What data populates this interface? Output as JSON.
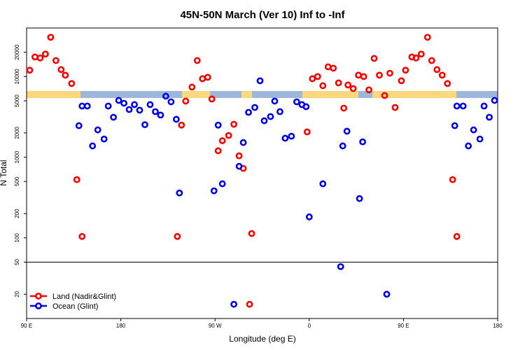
{
  "chart_data": {
    "type": "scatter",
    "title": "45N-50N March (Ver 10)   Inf to -Inf",
    "x_label": "Longitude (deg E)",
    "y_label": "N Total",
    "log_y": true,
    "xlim": [
      90,
      540
    ],
    "xticks": [
      {
        "value": 90,
        "label": "90 E"
      },
      180,
      {
        "value": 270,
        "label": "90 W"
      },
      {
        "value": 360,
        "label": "0"
      },
      {
        "value": 450,
        "label": "90 E"
      },
      {
        "value": 540,
        "label": "180"
      }
    ],
    "ylim": [
      10,
      40000
    ],
    "yticks": [
      20,
      50,
      100,
      200,
      500,
      1000,
      2000,
      5000,
      10000,
      20000
    ],
    "hline": 50,
    "legend": "bottom-left",
    "series": [
      {
        "name": "Land (Nadir&Glint)",
        "color": "#ff0000",
        "x": [
          93,
          98,
          103,
          108,
          113,
          118,
          123,
          127,
          133,
          138,
          143,
          234,
          238,
          242,
          248,
          253,
          258,
          263,
          267,
          273,
          277,
          283,
          288,
          293,
          297,
          305,
          303,
          358,
          363,
          368,
          373,
          378,
          383,
          388,
          393,
          397,
          402,
          407,
          412,
          417,
          422,
          427,
          432,
          437,
          442,
          448,
          452,
          458,
          462,
          467,
          473,
          477,
          482,
          487,
          492,
          497,
          501
        ],
        "values": [
          12000,
          17500,
          17000,
          19000,
          30700,
          15800,
          12200,
          10400,
          8200,
          527,
          104,
          104,
          2500,
          4960,
          7400,
          15800,
          9400,
          9800,
          5270,
          1200,
          1600,
          1860,
          2560,
          1040,
          726,
          113,
          15,
          2060,
          9400,
          10000,
          7700,
          13200,
          12700,
          8350,
          4060,
          7870,
          7100,
          10400,
          10000,
          6840,
          16800,
          10400,
          5820,
          11000,
          4140,
          8870,
          12000,
          17500,
          17000,
          19000,
          30700,
          15800,
          12200,
          10400,
          8200,
          527,
          104
        ]
      },
      {
        "name": "Ocean (Glint)",
        "color": "#0000ee",
        "x": [
          140,
          143,
          148,
          153,
          158,
          164,
          168,
          173,
          178,
          183,
          188,
          193,
          198,
          203,
          208,
          213,
          218,
          223,
          228,
          233,
          236,
          269,
          273,
          277,
          288,
          293,
          297,
          302,
          308,
          313,
          317,
          323,
          327,
          332,
          337,
          343,
          348,
          353,
          357,
          360,
          373,
          390,
          392,
          396,
          408,
          411,
          434,
          499,
          501,
          507,
          512,
          517,
          523,
          527,
          532,
          537
        ],
        "values": [
          2460,
          4310,
          4310,
          1380,
          2180,
          1680,
          4310,
          3130,
          5060,
          4670,
          3900,
          4490,
          3830,
          2530,
          4490,
          3670,
          3330,
          5710,
          4860,
          2950,
          360,
          383,
          2500,
          468,
          15,
          771,
          1520,
          3600,
          4140,
          8870,
          2830,
          3190,
          4960,
          3670,
          1720,
          1820,
          4860,
          4490,
          4230,
          182,
          468,
          44,
          1380,
          2100,
          307,
          1550,
          20,
          2460,
          4310,
          4310,
          1380,
          2180,
          1680,
          4310,
          3130,
          5060
        ]
      }
    ]
  }
}
